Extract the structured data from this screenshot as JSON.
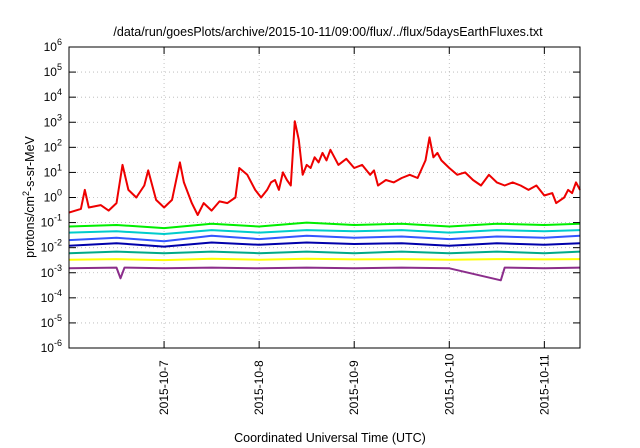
{
  "chart_data": {
    "type": "line",
    "title": "/data/run/goesPlots/archive/2015-10-11/09:00/flux/../flux/5daysEarthFluxes.txt",
    "xlabel": "Coordinated Universal Time (UTC)",
    "ylabel_parts": {
      "pre": "protons/cm",
      "sup": "2",
      "post": "-s-sr-MeV"
    },
    "x_range": [
      "2015-10-06T00:00",
      "2015-10-11T09:00"
    ],
    "x_ticks": [
      "2015-10-7",
      "2015-10-8",
      "2015-10-9",
      "2015-10-10",
      "2015-10-11"
    ],
    "y_scale": "log",
    "y_range": [
      1e-06,
      1000000.0
    ],
    "y_ticks": [
      {
        "base": "10",
        "exp": "-6"
      },
      {
        "base": "10",
        "exp": "-5"
      },
      {
        "base": "10",
        "exp": "-4"
      },
      {
        "base": "10",
        "exp": "-3"
      },
      {
        "base": "10",
        "exp": "-2"
      },
      {
        "base": "10",
        "exp": "-1"
      },
      {
        "base": "10",
        "exp": "0"
      },
      {
        "base": "10",
        "exp": "1"
      },
      {
        "base": "10",
        "exp": "2"
      },
      {
        "base": "10",
        "exp": "3"
      },
      {
        "base": "10",
        "exp": "4"
      },
      {
        "base": "10",
        "exp": "5"
      },
      {
        "base": "10",
        "exp": "6"
      }
    ],
    "grid": true,
    "legend": "none",
    "series": [
      {
        "color": "#ee0000",
        "points": [
          [
            "2015-10-06T00:00",
            0.25
          ],
          [
            "2015-10-06T03:00",
            0.35
          ],
          [
            "2015-10-06T04:00",
            2.0
          ],
          [
            "2015-10-06T05:00",
            0.4
          ],
          [
            "2015-10-06T08:00",
            0.5
          ],
          [
            "2015-10-06T10:00",
            0.3
          ],
          [
            "2015-10-06T12:00",
            0.6
          ],
          [
            "2015-10-06T13:30",
            20
          ],
          [
            "2015-10-06T15:00",
            2.0
          ],
          [
            "2015-10-06T17:00",
            1.0
          ],
          [
            "2015-10-06T19:00",
            3.0
          ],
          [
            "2015-10-06T20:00",
            12
          ],
          [
            "2015-10-06T22:00",
            0.8
          ],
          [
            "2015-10-07T00:00",
            0.4
          ],
          [
            "2015-10-07T02:00",
            0.8
          ],
          [
            "2015-10-07T04:00",
            25
          ],
          [
            "2015-10-07T05:00",
            4.0
          ],
          [
            "2015-10-07T07:00",
            0.6
          ],
          [
            "2015-10-07T08:30",
            0.2
          ],
          [
            "2015-10-07T10:00",
            0.6
          ],
          [
            "2015-10-07T12:00",
            0.3
          ],
          [
            "2015-10-07T14:00",
            0.7
          ],
          [
            "2015-10-07T16:00",
            0.6
          ],
          [
            "2015-10-07T18:00",
            1.0
          ],
          [
            "2015-10-07T19:00",
            15
          ],
          [
            "2015-10-07T21:00",
            8
          ],
          [
            "2015-10-07T23:00",
            2
          ],
          [
            "2015-10-08T00:30",
            1
          ],
          [
            "2015-10-08T02:00",
            2
          ],
          [
            "2015-10-08T03:00",
            4
          ],
          [
            "2015-10-08T04:00",
            5
          ],
          [
            "2015-10-08T05:00",
            2
          ],
          [
            "2015-10-08T06:00",
            10
          ],
          [
            "2015-10-08T07:00",
            5
          ],
          [
            "2015-10-08T08:00",
            3
          ],
          [
            "2015-10-08T09:00",
            1100
          ],
          [
            "2015-10-08T10:00",
            200
          ],
          [
            "2015-10-08T11:00",
            8
          ],
          [
            "2015-10-08T12:00",
            20
          ],
          [
            "2015-10-08T13:00",
            15
          ],
          [
            "2015-10-08T14:00",
            40
          ],
          [
            "2015-10-08T15:00",
            25
          ],
          [
            "2015-10-08T16:00",
            60
          ],
          [
            "2015-10-08T17:00",
            30
          ],
          [
            "2015-10-08T18:00",
            80
          ],
          [
            "2015-10-08T19:00",
            40
          ],
          [
            "2015-10-08T20:00",
            20
          ],
          [
            "2015-10-08T22:00",
            35
          ],
          [
            "2015-10-09T00:00",
            15
          ],
          [
            "2015-10-09T02:00",
            20
          ],
          [
            "2015-10-09T04:00",
            8
          ],
          [
            "2015-10-09T05:00",
            12
          ],
          [
            "2015-10-09T06:00",
            3
          ],
          [
            "2015-10-09T08:00",
            5
          ],
          [
            "2015-10-09T10:00",
            4
          ],
          [
            "2015-10-09T12:00",
            6
          ],
          [
            "2015-10-09T14:00",
            8
          ],
          [
            "2015-10-09T16:00",
            6
          ],
          [
            "2015-10-09T18:00",
            30
          ],
          [
            "2015-10-09T19:00",
            250
          ],
          [
            "2015-10-09T20:00",
            40
          ],
          [
            "2015-10-09T21:00",
            60
          ],
          [
            "2015-10-09T22:00",
            30
          ],
          [
            "2015-10-10T00:00",
            15
          ],
          [
            "2015-10-10T02:00",
            8
          ],
          [
            "2015-10-10T04:00",
            10
          ],
          [
            "2015-10-10T06:00",
            5
          ],
          [
            "2015-10-10T08:00",
            3
          ],
          [
            "2015-10-10T10:00",
            8
          ],
          [
            "2015-10-10T12:00",
            4
          ],
          [
            "2015-10-10T14:00",
            3
          ],
          [
            "2015-10-10T16:00",
            4
          ],
          [
            "2015-10-10T18:00",
            3
          ],
          [
            "2015-10-10T20:00",
            2
          ],
          [
            "2015-10-10T22:00",
            3
          ],
          [
            "2015-10-11T00:00",
            1.2
          ],
          [
            "2015-10-11T02:00",
            1.5
          ],
          [
            "2015-10-11T03:00",
            0.6
          ],
          [
            "2015-10-11T05:00",
            1.0
          ],
          [
            "2015-10-11T06:00",
            2.0
          ],
          [
            "2015-10-11T07:00",
            1.5
          ],
          [
            "2015-10-11T08:00",
            4.0
          ],
          [
            "2015-10-11T09:00",
            2.0
          ]
        ]
      },
      {
        "color": "#00ee00",
        "points": [
          [
            "2015-10-06T00:00",
            0.07
          ],
          [
            "2015-10-06T12:00",
            0.08
          ],
          [
            "2015-10-07T00:00",
            0.06
          ],
          [
            "2015-10-07T12:00",
            0.09
          ],
          [
            "2015-10-08T00:00",
            0.07
          ],
          [
            "2015-10-08T12:00",
            0.1
          ],
          [
            "2015-10-09T00:00",
            0.08
          ],
          [
            "2015-10-09T12:00",
            0.09
          ],
          [
            "2015-10-10T00:00",
            0.07
          ],
          [
            "2015-10-10T12:00",
            0.09
          ],
          [
            "2015-10-11T00:00",
            0.08
          ],
          [
            "2015-10-11T09:00",
            0.09
          ]
        ]
      },
      {
        "color": "#00cccc",
        "points": [
          [
            "2015-10-06T00:00",
            0.04
          ],
          [
            "2015-10-06T12:00",
            0.045
          ],
          [
            "2015-10-07T00:00",
            0.035
          ],
          [
            "2015-10-07T12:00",
            0.05
          ],
          [
            "2015-10-08T00:00",
            0.04
          ],
          [
            "2015-10-08T12:00",
            0.05
          ],
          [
            "2015-10-09T00:00",
            0.045
          ],
          [
            "2015-10-09T12:00",
            0.05
          ],
          [
            "2015-10-10T00:00",
            0.04
          ],
          [
            "2015-10-10T12:00",
            0.05
          ],
          [
            "2015-10-11T00:00",
            0.045
          ],
          [
            "2015-10-11T09:00",
            0.05
          ]
        ]
      },
      {
        "color": "#3355ff",
        "points": [
          [
            "2015-10-06T00:00",
            0.02
          ],
          [
            "2015-10-06T12:00",
            0.025
          ],
          [
            "2015-10-07T00:00",
            0.018
          ],
          [
            "2015-10-07T12:00",
            0.03
          ],
          [
            "2015-10-08T00:00",
            0.022
          ],
          [
            "2015-10-08T12:00",
            0.03
          ],
          [
            "2015-10-09T00:00",
            0.025
          ],
          [
            "2015-10-09T12:00",
            0.028
          ],
          [
            "2015-10-10T00:00",
            0.022
          ],
          [
            "2015-10-10T12:00",
            0.028
          ],
          [
            "2015-10-11T00:00",
            0.025
          ],
          [
            "2015-10-11T09:00",
            0.03
          ]
        ]
      },
      {
        "color": "#0000aa",
        "points": [
          [
            "2015-10-06T00:00",
            0.012
          ],
          [
            "2015-10-06T12:00",
            0.015
          ],
          [
            "2015-10-07T00:00",
            0.011
          ],
          [
            "2015-10-07T12:00",
            0.016
          ],
          [
            "2015-10-08T00:00",
            0.013
          ],
          [
            "2015-10-08T12:00",
            0.016
          ],
          [
            "2015-10-09T00:00",
            0.014
          ],
          [
            "2015-10-09T12:00",
            0.015
          ],
          [
            "2015-10-10T00:00",
            0.012
          ],
          [
            "2015-10-10T12:00",
            0.015
          ],
          [
            "2015-10-11T00:00",
            0.013
          ],
          [
            "2015-10-11T09:00",
            0.015
          ]
        ]
      },
      {
        "color": "#00aa88",
        "points": [
          [
            "2015-10-06T00:00",
            0.006
          ],
          [
            "2015-10-06T12:00",
            0.007
          ],
          [
            "2015-10-07T00:00",
            0.006
          ],
          [
            "2015-10-07T12:00",
            0.007
          ],
          [
            "2015-10-08T00:00",
            0.006
          ],
          [
            "2015-10-08T12:00",
            0.007
          ],
          [
            "2015-10-09T00:00",
            0.006
          ],
          [
            "2015-10-09T12:00",
            0.007
          ],
          [
            "2015-10-10T00:00",
            0.006
          ],
          [
            "2015-10-10T12:00",
            0.007
          ],
          [
            "2015-10-11T00:00",
            0.006
          ],
          [
            "2015-10-11T09:00",
            0.007
          ]
        ]
      },
      {
        "color": "#ffff00",
        "points": [
          [
            "2015-10-06T00:00",
            0.0033
          ],
          [
            "2015-10-06T12:00",
            0.0035
          ],
          [
            "2015-10-07T00:00",
            0.0032
          ],
          [
            "2015-10-07T12:00",
            0.0036
          ],
          [
            "2015-10-08T00:00",
            0.0033
          ],
          [
            "2015-10-08T12:00",
            0.0036
          ],
          [
            "2015-10-09T00:00",
            0.0034
          ],
          [
            "2015-10-09T12:00",
            0.0035
          ],
          [
            "2015-10-10T00:00",
            0.0033
          ],
          [
            "2015-10-10T12:00",
            0.0035
          ],
          [
            "2015-10-11T00:00",
            0.0034
          ],
          [
            "2015-10-11T09:00",
            0.0035
          ]
        ]
      },
      {
        "color": "#8b2d8b",
        "points": [
          [
            "2015-10-06T00:00",
            0.0015
          ],
          [
            "2015-10-06T12:00",
            0.0016
          ],
          [
            "2015-10-06T13:00",
            0.0006
          ],
          [
            "2015-10-06T14:00",
            0.0016
          ],
          [
            "2015-10-07T00:00",
            0.0015
          ],
          [
            "2015-10-07T12:00",
            0.0016
          ],
          [
            "2015-10-08T00:00",
            0.0015
          ],
          [
            "2015-10-08T12:00",
            0.0016
          ],
          [
            "2015-10-09T00:00",
            0.0015
          ],
          [
            "2015-10-09T12:00",
            0.0016
          ],
          [
            "2015-10-10T00:00",
            0.0015
          ],
          [
            "2015-10-10T13:00",
            0.0005
          ],
          [
            "2015-10-10T14:00",
            0.0016
          ],
          [
            "2015-10-11T00:00",
            0.0015
          ],
          [
            "2015-10-11T09:00",
            0.0016
          ]
        ]
      }
    ]
  }
}
